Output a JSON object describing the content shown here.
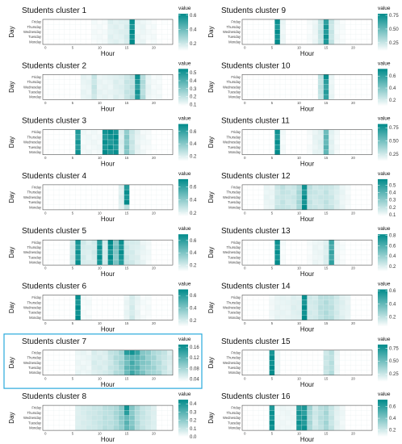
{
  "chart_data": {
    "type": "heatmap",
    "xlabel": "Hour",
    "ylabel": "Day",
    "legend_title": "value",
    "legend_placement": "right",
    "x_ticks": [
      "0",
      "5",
      "10",
      "15",
      "20"
    ],
    "y_categories": [
      "Friday",
      "Thursday",
      "Wednesday",
      "Tuesday",
      "Monday"
    ],
    "color_low": "#ffffff",
    "color_high": "#008b8b",
    "highlight_color": "#29a9dc",
    "panels": [
      {
        "title": "Students cluster 1",
        "vmin": 0.1,
        "vmax": 0.62,
        "legend_ticks": [
          0.2,
          0.4,
          0.6
        ],
        "highlighted": false,
        "cells": [
          [
            9,
            0.12
          ],
          [
            10,
            0.12
          ],
          [
            11,
            0.12
          ],
          [
            12,
            0.16
          ],
          [
            13,
            0.16
          ],
          [
            14,
            0.16
          ],
          [
            15,
            0.18
          ],
          [
            16,
            0.6
          ],
          [
            17,
            0.14
          ],
          [
            18,
            0.14
          ],
          [
            19,
            0.12
          ],
          [
            20,
            0.12
          ],
          [
            21,
            0.1
          ],
          [
            22,
            0.1
          ]
        ]
      },
      {
        "title": "Students cluster 2",
        "vmin": 0.08,
        "vmax": 0.55,
        "legend_ticks": [
          0.1,
          0.2,
          0.3,
          0.4,
          0.5
        ],
        "highlighted": false,
        "cells": [
          [
            7,
            0.12
          ],
          [
            8,
            0.12
          ],
          [
            9,
            0.18
          ],
          [
            10,
            0.12
          ],
          [
            11,
            0.12
          ],
          [
            12,
            0.12
          ],
          [
            13,
            0.14
          ],
          [
            14,
            0.14
          ],
          [
            15,
            0.18
          ],
          [
            16,
            0.2
          ],
          [
            17,
            0.5
          ],
          [
            18,
            0.22
          ],
          [
            19,
            0.12
          ],
          [
            20,
            0.1
          ],
          [
            21,
            0.1
          ]
        ]
      },
      {
        "title": "Students cluster 3",
        "vmin": 0.12,
        "vmax": 0.72,
        "legend_ticks": [
          0.2,
          0.4,
          0.6
        ],
        "highlighted": false,
        "cells": [
          [
            6,
            0.65
          ],
          [
            7,
            0.15
          ],
          [
            8,
            0.15
          ],
          [
            9,
            0.15
          ],
          [
            10,
            0.15
          ],
          [
            11,
            0.68
          ],
          [
            12,
            0.68
          ],
          [
            13,
            0.68
          ],
          [
            14,
            0.2
          ],
          [
            15,
            0.4
          ],
          [
            16,
            0.25
          ],
          [
            17,
            0.18
          ],
          [
            18,
            0.15
          ],
          [
            19,
            0.14
          ],
          [
            20,
            0.12
          ]
        ]
      },
      {
        "title": "Students cluster 4",
        "vmin": 0.15,
        "vmax": 0.72,
        "legend_ticks": [
          0.2,
          0.4,
          0.6
        ],
        "highlighted": false,
        "cells": [
          [
            14,
            0.22
          ],
          [
            15,
            0.68
          ]
        ],
        "overrides": [
          [
            15,
            4,
            0.3
          ]
        ]
      },
      {
        "title": "Students cluster 5",
        "vmin": 0.1,
        "vmax": 0.7,
        "legend_ticks": [
          0.2,
          0.4,
          0.6
        ],
        "highlighted": false,
        "cells": [
          [
            5,
            0.2
          ],
          [
            6,
            0.65
          ],
          [
            7,
            0.2
          ],
          [
            8,
            0.18
          ],
          [
            9,
            0.2
          ],
          [
            10,
            0.65
          ],
          [
            11,
            0.2
          ],
          [
            12,
            0.68
          ],
          [
            13,
            0.4
          ],
          [
            14,
            0.65
          ],
          [
            15,
            0.22
          ],
          [
            16,
            0.2
          ],
          [
            17,
            0.18
          ],
          [
            18,
            0.15
          ],
          [
            19,
            0.13
          ]
        ]
      },
      {
        "title": "Students cluster 6",
        "vmin": 0.1,
        "vmax": 0.7,
        "legend_ticks": [
          0.2,
          0.4,
          0.6
        ],
        "highlighted": false,
        "cells": [
          [
            6,
            0.68
          ],
          [
            7,
            0.12
          ],
          [
            8,
            0.12
          ],
          [
            15,
            0.15
          ],
          [
            16,
            0.2
          ],
          [
            17,
            0.15
          ],
          [
            18,
            0.12
          ],
          [
            19,
            0.12
          ]
        ]
      },
      {
        "title": "Students cluster 7",
        "vmin": 0.03,
        "vmax": 0.17,
        "legend_ticks": [
          0.04,
          0.08,
          0.12,
          0.16
        ],
        "highlighted": true,
        "cells": [
          [
            6,
            0.04
          ],
          [
            7,
            0.04
          ],
          [
            8,
            0.04
          ],
          [
            9,
            0.05
          ],
          [
            10,
            0.05
          ],
          [
            11,
            0.05
          ],
          [
            12,
            0.06
          ],
          [
            13,
            0.07
          ],
          [
            14,
            0.08
          ],
          [
            15,
            0.11
          ],
          [
            16,
            0.13
          ],
          [
            17,
            0.12
          ],
          [
            18,
            0.1
          ],
          [
            19,
            0.09
          ],
          [
            20,
            0.08
          ],
          [
            21,
            0.07
          ],
          [
            22,
            0.06
          ],
          [
            23,
            0.05
          ]
        ],
        "overrides": [
          [
            15,
            0,
            0.15
          ],
          [
            16,
            0,
            0.16
          ],
          [
            17,
            0,
            0.14
          ]
        ]
      },
      {
        "title": "Students cluster 8",
        "vmin": 0.0,
        "vmax": 0.45,
        "legend_ticks": [
          0.0,
          0.1,
          0.2,
          0.3,
          0.4
        ],
        "highlighted": false,
        "cells": [
          [
            6,
            0.06
          ],
          [
            7,
            0.07
          ],
          [
            8,
            0.08
          ],
          [
            9,
            0.09
          ],
          [
            10,
            0.1
          ],
          [
            11,
            0.12
          ],
          [
            12,
            0.12
          ],
          [
            13,
            0.15
          ],
          [
            14,
            0.2
          ],
          [
            15,
            0.28
          ],
          [
            16,
            0.22
          ],
          [
            17,
            0.14
          ],
          [
            18,
            0.1
          ],
          [
            19,
            0.08
          ],
          [
            20,
            0.06
          ]
        ],
        "overrides": [
          [
            15,
            0,
            0.42
          ],
          [
            15,
            1,
            0.38
          ]
        ]
      },
      {
        "title": "Students cluster 9",
        "vmin": 0.1,
        "vmax": 0.78,
        "legend_ticks": [
          0.25,
          0.5,
          0.75
        ],
        "highlighted": false,
        "cells": [
          [
            6,
            0.75
          ],
          [
            7,
            0.15
          ],
          [
            12,
            0.12
          ],
          [
            13,
            0.15
          ],
          [
            14,
            0.25
          ],
          [
            15,
            0.7
          ],
          [
            16,
            0.25
          ],
          [
            17,
            0.14
          ],
          [
            18,
            0.12
          ]
        ]
      },
      {
        "title": "Students cluster 10",
        "vmin": 0.1,
        "vmax": 0.72,
        "legend_ticks": [
          0.2,
          0.4,
          0.6
        ],
        "highlighted": false,
        "cells": [
          [
            14,
            0.25
          ],
          [
            15,
            0.6
          ],
          [
            16,
            0.15
          ]
        ],
        "overrides": [
          [
            15,
            0,
            0.7
          ]
        ]
      },
      {
        "title": "Students cluster 11",
        "vmin": 0.12,
        "vmax": 0.82,
        "legend_ticks": [
          0.25,
          0.5,
          0.75
        ],
        "highlighted": false,
        "cells": [
          [
            6,
            0.78
          ],
          [
            7,
            0.15
          ],
          [
            12,
            0.14
          ],
          [
            13,
            0.18
          ],
          [
            14,
            0.2
          ],
          [
            15,
            0.55
          ],
          [
            16,
            0.2
          ],
          [
            17,
            0.15
          ]
        ]
      },
      {
        "title": "Students cluster 12",
        "vmin": 0.08,
        "vmax": 0.58,
        "legend_ticks": [
          0.1,
          0.2,
          0.3,
          0.4,
          0.5
        ],
        "highlighted": false,
        "cells": [
          [
            4,
            0.12
          ],
          [
            5,
            0.12
          ],
          [
            6,
            0.18
          ],
          [
            7,
            0.2
          ],
          [
            8,
            0.18
          ],
          [
            9,
            0.18
          ],
          [
            10,
            0.25
          ],
          [
            11,
            0.55
          ],
          [
            12,
            0.2
          ],
          [
            13,
            0.18
          ],
          [
            14,
            0.18
          ],
          [
            15,
            0.2
          ],
          [
            16,
            0.18
          ],
          [
            17,
            0.15
          ],
          [
            18,
            0.12
          ],
          [
            19,
            0.1
          ]
        ]
      },
      {
        "title": "Students cluster 13",
        "vmin": 0.1,
        "vmax": 0.82,
        "legend_ticks": [
          0.2,
          0.4,
          0.6,
          0.8
        ],
        "highlighted": false,
        "cells": [
          [
            6,
            0.78
          ],
          [
            7,
            0.12
          ],
          [
            12,
            0.12
          ],
          [
            13,
            0.15
          ],
          [
            14,
            0.15
          ],
          [
            15,
            0.2
          ],
          [
            16,
            0.65
          ],
          [
            17,
            0.15
          ],
          [
            18,
            0.12
          ]
        ]
      },
      {
        "title": "Students cluster 14",
        "vmin": 0.05,
        "vmax": 0.62,
        "legend_ticks": [
          0.2,
          0.4,
          0.6
        ],
        "highlighted": false,
        "cells": [
          [
            5,
            0.08
          ],
          [
            6,
            0.1
          ],
          [
            7,
            0.1
          ],
          [
            8,
            0.1
          ],
          [
            9,
            0.12
          ],
          [
            10,
            0.12
          ],
          [
            11,
            0.6
          ],
          [
            12,
            0.15
          ],
          [
            13,
            0.15
          ],
          [
            14,
            0.2
          ],
          [
            15,
            0.22
          ],
          [
            16,
            0.2
          ],
          [
            17,
            0.15
          ],
          [
            18,
            0.12
          ],
          [
            19,
            0.1
          ]
        ]
      },
      {
        "title": "Students cluster 15",
        "vmin": 0.1,
        "vmax": 0.82,
        "legend_ticks": [
          0.25,
          0.5,
          0.75
        ],
        "highlighted": false,
        "cells": [
          [
            5,
            0.8
          ],
          [
            6,
            0.15
          ],
          [
            15,
            0.25
          ],
          [
            16,
            0.3
          ],
          [
            17,
            0.15
          ]
        ]
      },
      {
        "title": "Students cluster 16",
        "vmin": 0.08,
        "vmax": 0.72,
        "legend_ticks": [
          0.2,
          0.4,
          0.6
        ],
        "highlighted": false,
        "cells": [
          [
            5,
            0.68
          ],
          [
            6,
            0.12
          ],
          [
            7,
            0.12
          ],
          [
            8,
            0.12
          ],
          [
            9,
            0.12
          ],
          [
            10,
            0.65
          ],
          [
            11,
            0.65
          ],
          [
            12,
            0.3
          ],
          [
            13,
            0.2
          ],
          [
            14,
            0.25
          ],
          [
            15,
            0.3
          ],
          [
            16,
            0.22
          ],
          [
            17,
            0.15
          ],
          [
            18,
            0.12
          ]
        ]
      }
    ]
  }
}
